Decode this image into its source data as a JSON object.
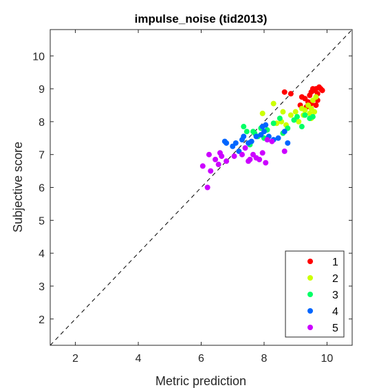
{
  "chart_data": {
    "type": "scatter",
    "title": "impulse_noise (tid2013)",
    "xlabel": "Metric prediction",
    "ylabel": "Subjective score",
    "xlim": [
      1.2,
      10.8
    ],
    "ylim": [
      1.2,
      10.8
    ],
    "xticks": [
      2,
      4,
      6,
      8,
      10
    ],
    "yticks": [
      2,
      3,
      4,
      5,
      6,
      7,
      8,
      9,
      10
    ],
    "grid": false,
    "legend_position": "bottom-right",
    "reference_line": "y = x (dashed)",
    "series": [
      {
        "name": "1",
        "color": "#ff0000",
        "points": [
          [
            8.65,
            8.9
          ],
          [
            8.85,
            8.85
          ],
          [
            9.15,
            8.5
          ],
          [
            9.2,
            8.75
          ],
          [
            9.3,
            8.7
          ],
          [
            9.4,
            8.6
          ],
          [
            9.45,
            8.8
          ],
          [
            9.5,
            8.9
          ],
          [
            9.55,
            9.0
          ],
          [
            9.6,
            8.95
          ],
          [
            9.65,
            9.0
          ],
          [
            9.7,
            8.85
          ],
          [
            9.75,
            9.05
          ],
          [
            9.8,
            9.0
          ],
          [
            9.85,
            8.95
          ],
          [
            9.7,
            8.65
          ],
          [
            9.5,
            8.55
          ],
          [
            9.65,
            8.5
          ],
          [
            9.35,
            8.45
          ]
        ]
      },
      {
        "name": "2",
        "color": "#ccff00",
        "points": [
          [
            7.95,
            8.25
          ],
          [
            8.3,
            8.55
          ],
          [
            8.55,
            8.0
          ],
          [
            8.6,
            8.3
          ],
          [
            8.7,
            7.9
          ],
          [
            8.85,
            8.2
          ],
          [
            9.0,
            8.3
          ],
          [
            9.1,
            8.0
          ],
          [
            9.2,
            8.4
          ],
          [
            9.25,
            8.2
          ],
          [
            9.3,
            8.35
          ],
          [
            9.4,
            8.5
          ],
          [
            9.45,
            8.25
          ],
          [
            9.5,
            8.4
          ],
          [
            9.55,
            8.65
          ],
          [
            9.6,
            8.3
          ],
          [
            9.65,
            8.75
          ],
          [
            9.5,
            8.1
          ],
          [
            8.4,
            7.95
          ]
        ]
      },
      {
        "name": "3",
        "color": "#00ff66",
        "points": [
          [
            7.35,
            7.85
          ],
          [
            7.45,
            7.7
          ],
          [
            7.55,
            7.3
          ],
          [
            7.7,
            7.65
          ],
          [
            7.8,
            7.55
          ],
          [
            7.9,
            7.8
          ],
          [
            8.0,
            7.5
          ],
          [
            8.1,
            7.75
          ],
          [
            8.3,
            7.95
          ],
          [
            8.5,
            8.1
          ],
          [
            8.75,
            7.8
          ],
          [
            8.95,
            8.05
          ],
          [
            9.05,
            8.15
          ],
          [
            9.2,
            7.85
          ],
          [
            9.3,
            8.2
          ],
          [
            9.45,
            8.1
          ],
          [
            9.55,
            8.15
          ],
          [
            8.6,
            7.65
          ],
          [
            7.65,
            7.7
          ]
        ]
      },
      {
        "name": "4",
        "color": "#0066ff",
        "points": [
          [
            6.75,
            7.4
          ],
          [
            6.8,
            7.35
          ],
          [
            7.0,
            7.25
          ],
          [
            7.1,
            7.35
          ],
          [
            7.2,
            7.1
          ],
          [
            7.3,
            7.45
          ],
          [
            7.35,
            7.55
          ],
          [
            7.5,
            7.35
          ],
          [
            7.6,
            7.4
          ],
          [
            7.75,
            7.55
          ],
          [
            7.9,
            7.6
          ],
          [
            7.95,
            7.85
          ],
          [
            8.05,
            7.9
          ],
          [
            8.15,
            7.55
          ],
          [
            8.3,
            7.45
          ],
          [
            8.45,
            7.5
          ],
          [
            8.65,
            7.7
          ],
          [
            8.75,
            7.35
          ],
          [
            8.0,
            7.7
          ]
        ]
      },
      {
        "name": "5",
        "color": "#cc00ff",
        "points": [
          [
            6.05,
            6.65
          ],
          [
            6.2,
            6.0
          ],
          [
            6.25,
            7.0
          ],
          [
            6.3,
            6.5
          ],
          [
            6.45,
            6.85
          ],
          [
            6.55,
            6.7
          ],
          [
            6.65,
            6.95
          ],
          [
            6.8,
            6.8
          ],
          [
            7.05,
            6.95
          ],
          [
            7.3,
            7.0
          ],
          [
            7.4,
            7.2
          ],
          [
            7.55,
            6.85
          ],
          [
            7.65,
            7.0
          ],
          [
            7.75,
            6.9
          ],
          [
            7.85,
            6.85
          ],
          [
            7.95,
            7.05
          ],
          [
            8.05,
            6.75
          ],
          [
            8.1,
            7.45
          ],
          [
            8.25,
            7.4
          ],
          [
            8.65,
            7.1
          ],
          [
            7.5,
            6.8
          ],
          [
            6.6,
            7.05
          ]
        ]
      }
    ]
  }
}
